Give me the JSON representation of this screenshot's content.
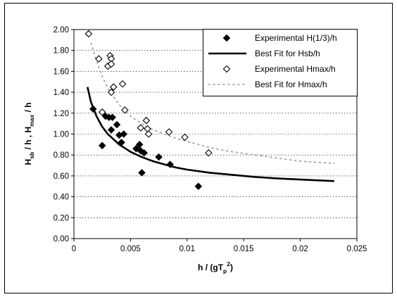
{
  "chart_data": {
    "type": "scatter",
    "xlabel_main": "h / (gT",
    "xlabel_sub": "p",
    "xlabel_sup": "2",
    "xlabel_close": ")",
    "ylabel_parts": [
      {
        "t": "H",
        "s": "base"
      },
      {
        "t": "sb",
        "s": "sub"
      },
      {
        "t": " / h , H",
        "s": "base"
      },
      {
        "t": "max",
        "s": "sub"
      },
      {
        "t": " / h",
        "s": "base"
      }
    ],
    "xlim": [
      0,
      0.025
    ],
    "ylim": [
      0,
      2.0
    ],
    "xticks": [
      "0",
      "0.005",
      "0.01",
      "0.015",
      "0.02",
      "0.025"
    ],
    "yticks": [
      "0.00",
      "0.20",
      "0.40",
      "0.60",
      "0.80",
      "1.00",
      "1.20",
      "1.40",
      "1.60",
      "1.80",
      "2.00"
    ],
    "grid": "horizontal dashed",
    "legend_position": "top-right",
    "series": [
      {
        "name": "Experimental H(1/3)/h",
        "kind": "scatter",
        "marker": "filled-diamond",
        "color": "#000000",
        "points": [
          [
            0.0017,
            1.24
          ],
          [
            0.0025,
            0.89
          ],
          [
            0.0028,
            1.17
          ],
          [
            0.0031,
            1.16
          ],
          [
            0.0033,
            1.04
          ],
          [
            0.0034,
            1.16
          ],
          [
            0.0038,
            1.09
          ],
          [
            0.004,
            0.99
          ],
          [
            0.0042,
            0.92
          ],
          [
            0.0044,
            1.0
          ],
          [
            0.0055,
            0.86
          ],
          [
            0.0058,
            0.9
          ],
          [
            0.0059,
            0.84
          ],
          [
            0.006,
            0.63
          ],
          [
            0.0062,
            0.82
          ],
          [
            0.0075,
            0.78
          ],
          [
            0.0085,
            0.71
          ],
          [
            0.011,
            0.5
          ]
        ]
      },
      {
        "name": "Best Fit for Hsb/h",
        "kind": "line",
        "style": "solid-thick",
        "color": "#000000",
        "points": [
          [
            0.0012,
            1.45
          ],
          [
            0.0015,
            1.31
          ],
          [
            0.002,
            1.17
          ],
          [
            0.0025,
            1.07
          ],
          [
            0.003,
            1.0
          ],
          [
            0.004,
            0.9
          ],
          [
            0.005,
            0.83
          ],
          [
            0.006,
            0.78
          ],
          [
            0.007,
            0.74
          ],
          [
            0.008,
            0.71
          ],
          [
            0.009,
            0.68
          ],
          [
            0.01,
            0.66
          ],
          [
            0.012,
            0.63
          ],
          [
            0.014,
            0.61
          ],
          [
            0.016,
            0.59
          ],
          [
            0.018,
            0.575
          ],
          [
            0.02,
            0.565
          ],
          [
            0.023,
            0.55
          ]
        ]
      },
      {
        "name": "Experimental Hmax/h",
        "kind": "scatter",
        "marker": "open-diamond",
        "color": "#000000",
        "points": [
          [
            0.0013,
            1.96
          ],
          [
            0.0022,
            1.72
          ],
          [
            0.0025,
            1.21
          ],
          [
            0.003,
            1.65
          ],
          [
            0.0032,
            1.75
          ],
          [
            0.0033,
            1.72
          ],
          [
            0.0033,
            1.67
          ],
          [
            0.0033,
            1.4
          ],
          [
            0.0035,
            1.45
          ],
          [
            0.0043,
            1.48
          ],
          [
            0.0045,
            1.23
          ],
          [
            0.0059,
            1.06
          ],
          [
            0.0064,
            1.13
          ],
          [
            0.0065,
            1.05
          ],
          [
            0.0066,
            1.0
          ],
          [
            0.0084,
            1.02
          ],
          [
            0.0098,
            0.97
          ],
          [
            0.0119,
            0.82
          ]
        ]
      },
      {
        "name": "Best Fit for Hmax/h",
        "kind": "line",
        "style": "dotted",
        "color": "#9a9a9a",
        "points": [
          [
            0.0015,
            1.87
          ],
          [
            0.002,
            1.7
          ],
          [
            0.0025,
            1.55
          ],
          [
            0.003,
            1.44
          ],
          [
            0.004,
            1.28
          ],
          [
            0.005,
            1.17
          ],
          [
            0.006,
            1.1
          ],
          [
            0.007,
            1.04
          ],
          [
            0.008,
            1.0
          ],
          [
            0.009,
            0.96
          ],
          [
            0.01,
            0.93
          ],
          [
            0.012,
            0.87
          ],
          [
            0.014,
            0.83
          ],
          [
            0.016,
            0.8
          ],
          [
            0.018,
            0.77
          ],
          [
            0.02,
            0.74
          ],
          [
            0.023,
            0.72
          ]
        ]
      }
    ]
  }
}
